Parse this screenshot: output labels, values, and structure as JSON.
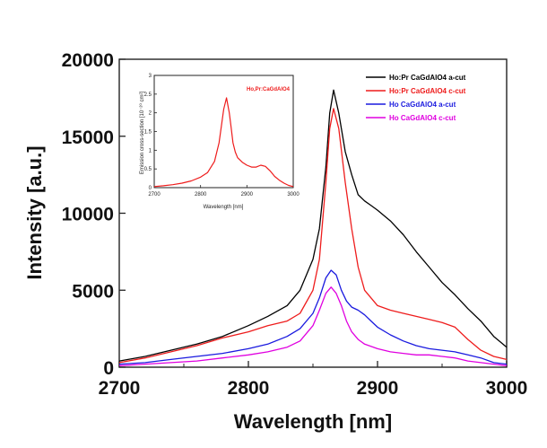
{
  "chart_data": [
    {
      "type": "line",
      "title": "",
      "xlabel": "Wavelength [nm]",
      "ylabel": "Intensity [a.u.]",
      "xlim": [
        2700,
        3000
      ],
      "ylim": [
        0,
        20000
      ],
      "xticks": [
        2700,
        2800,
        2900,
        3000
      ],
      "yticks": [
        0,
        5000,
        10000,
        15000,
        20000
      ],
      "grid": false,
      "legend_position": "top-right",
      "series": [
        {
          "name": "Ho:Pr CaGdAlO4 a-cut",
          "color": "#000000",
          "x": [
            2700,
            2720,
            2740,
            2760,
            2780,
            2800,
            2815,
            2830,
            2840,
            2850,
            2855,
            2860,
            2863,
            2866,
            2870,
            2875,
            2880,
            2885,
            2890,
            2895,
            2900,
            2910,
            2920,
            2930,
            2940,
            2950,
            2960,
            2970,
            2980,
            2990,
            3000
          ],
          "y": [
            400,
            700,
            1100,
            1500,
            2000,
            2700,
            3300,
            4000,
            5000,
            7000,
            9000,
            13000,
            16500,
            18000,
            16500,
            14000,
            12500,
            11200,
            10800,
            10500,
            10200,
            9500,
            8600,
            7500,
            6500,
            5500,
            4700,
            3800,
            3000,
            2000,
            1300
          ]
        },
        {
          "name": "Ho:Pr CaGdAlO4 c-cut",
          "color": "#ee1c1c",
          "x": [
            2700,
            2720,
            2740,
            2760,
            2780,
            2800,
            2815,
            2830,
            2840,
            2850,
            2855,
            2860,
            2863,
            2866,
            2870,
            2875,
            2880,
            2885,
            2890,
            2900,
            2910,
            2920,
            2930,
            2940,
            2950,
            2960,
            2970,
            2980,
            2990,
            3000
          ],
          "y": [
            300,
            600,
            1000,
            1400,
            1900,
            2300,
            2700,
            3000,
            3500,
            5000,
            7000,
            12000,
            15500,
            16800,
            15500,
            12000,
            9000,
            6500,
            5000,
            4000,
            3700,
            3500,
            3300,
            3100,
            2900,
            2600,
            1800,
            1100,
            700,
            500
          ]
        },
        {
          "name": "Ho CaGdAlO4 a-cut",
          "color": "#1a1adf",
          "x": [
            2700,
            2720,
            2740,
            2760,
            2780,
            2800,
            2815,
            2830,
            2840,
            2850,
            2855,
            2860,
            2864,
            2868,
            2872,
            2876,
            2880,
            2885,
            2890,
            2895,
            2900,
            2910,
            2920,
            2930,
            2940,
            2950,
            2960,
            2970,
            2980,
            2990,
            3000
          ],
          "y": [
            200,
            300,
            500,
            700,
            900,
            1200,
            1500,
            2000,
            2500,
            3500,
            4500,
            5800,
            6300,
            6000,
            5000,
            4300,
            3900,
            3700,
            3400,
            3000,
            2600,
            2100,
            1700,
            1400,
            1200,
            1100,
            1000,
            800,
            600,
            300,
            200
          ]
        },
        {
          "name": "Ho CaGdAlO4 c-cut",
          "color": "#e000e0",
          "x": [
            2700,
            2720,
            2740,
            2760,
            2780,
            2800,
            2815,
            2830,
            2840,
            2850,
            2855,
            2860,
            2864,
            2868,
            2872,
            2876,
            2880,
            2885,
            2890,
            2900,
            2910,
            2920,
            2930,
            2940,
            2950,
            2960,
            2970,
            2980,
            2990,
            3000
          ],
          "y": [
            100,
            200,
            300,
            400,
            600,
            800,
            1000,
            1300,
            1700,
            2700,
            3700,
            4800,
            5200,
            4800,
            4000,
            3000,
            2300,
            1800,
            1500,
            1200,
            1000,
            900,
            800,
            800,
            700,
            600,
            400,
            300,
            200,
            100
          ]
        }
      ]
    },
    {
      "type": "line",
      "title": "",
      "xlabel": "Wavelength [nm]",
      "ylabel": "Emission cross-section [10⁻²⁰ cm²]",
      "xlim": [
        2700,
        3000
      ],
      "ylim": [
        0,
        3.0
      ],
      "xticks": [
        2700,
        2800,
        2900,
        3000
      ],
      "yticks": [
        0,
        0.5,
        1.0,
        1.5,
        2.0,
        2.5,
        3.0
      ],
      "grid": false,
      "legend_position": "top-right",
      "series": [
        {
          "name": "Ho,Pr:CaGdAlO4",
          "color": "#ee1c1c",
          "x": [
            2700,
            2720,
            2740,
            2760,
            2780,
            2800,
            2815,
            2830,
            2840,
            2850,
            2856,
            2862,
            2866,
            2870,
            2875,
            2880,
            2890,
            2900,
            2910,
            2920,
            2930,
            2940,
            2950,
            2960,
            2970,
            2980,
            2990,
            3000
          ],
          "y": [
            0.03,
            0.05,
            0.08,
            0.12,
            0.18,
            0.28,
            0.4,
            0.7,
            1.2,
            2.1,
            2.4,
            2.0,
            1.6,
            1.2,
            0.95,
            0.8,
            0.68,
            0.6,
            0.55,
            0.55,
            0.6,
            0.57,
            0.45,
            0.3,
            0.2,
            0.12,
            0.06,
            0.03
          ]
        }
      ]
    }
  ]
}
